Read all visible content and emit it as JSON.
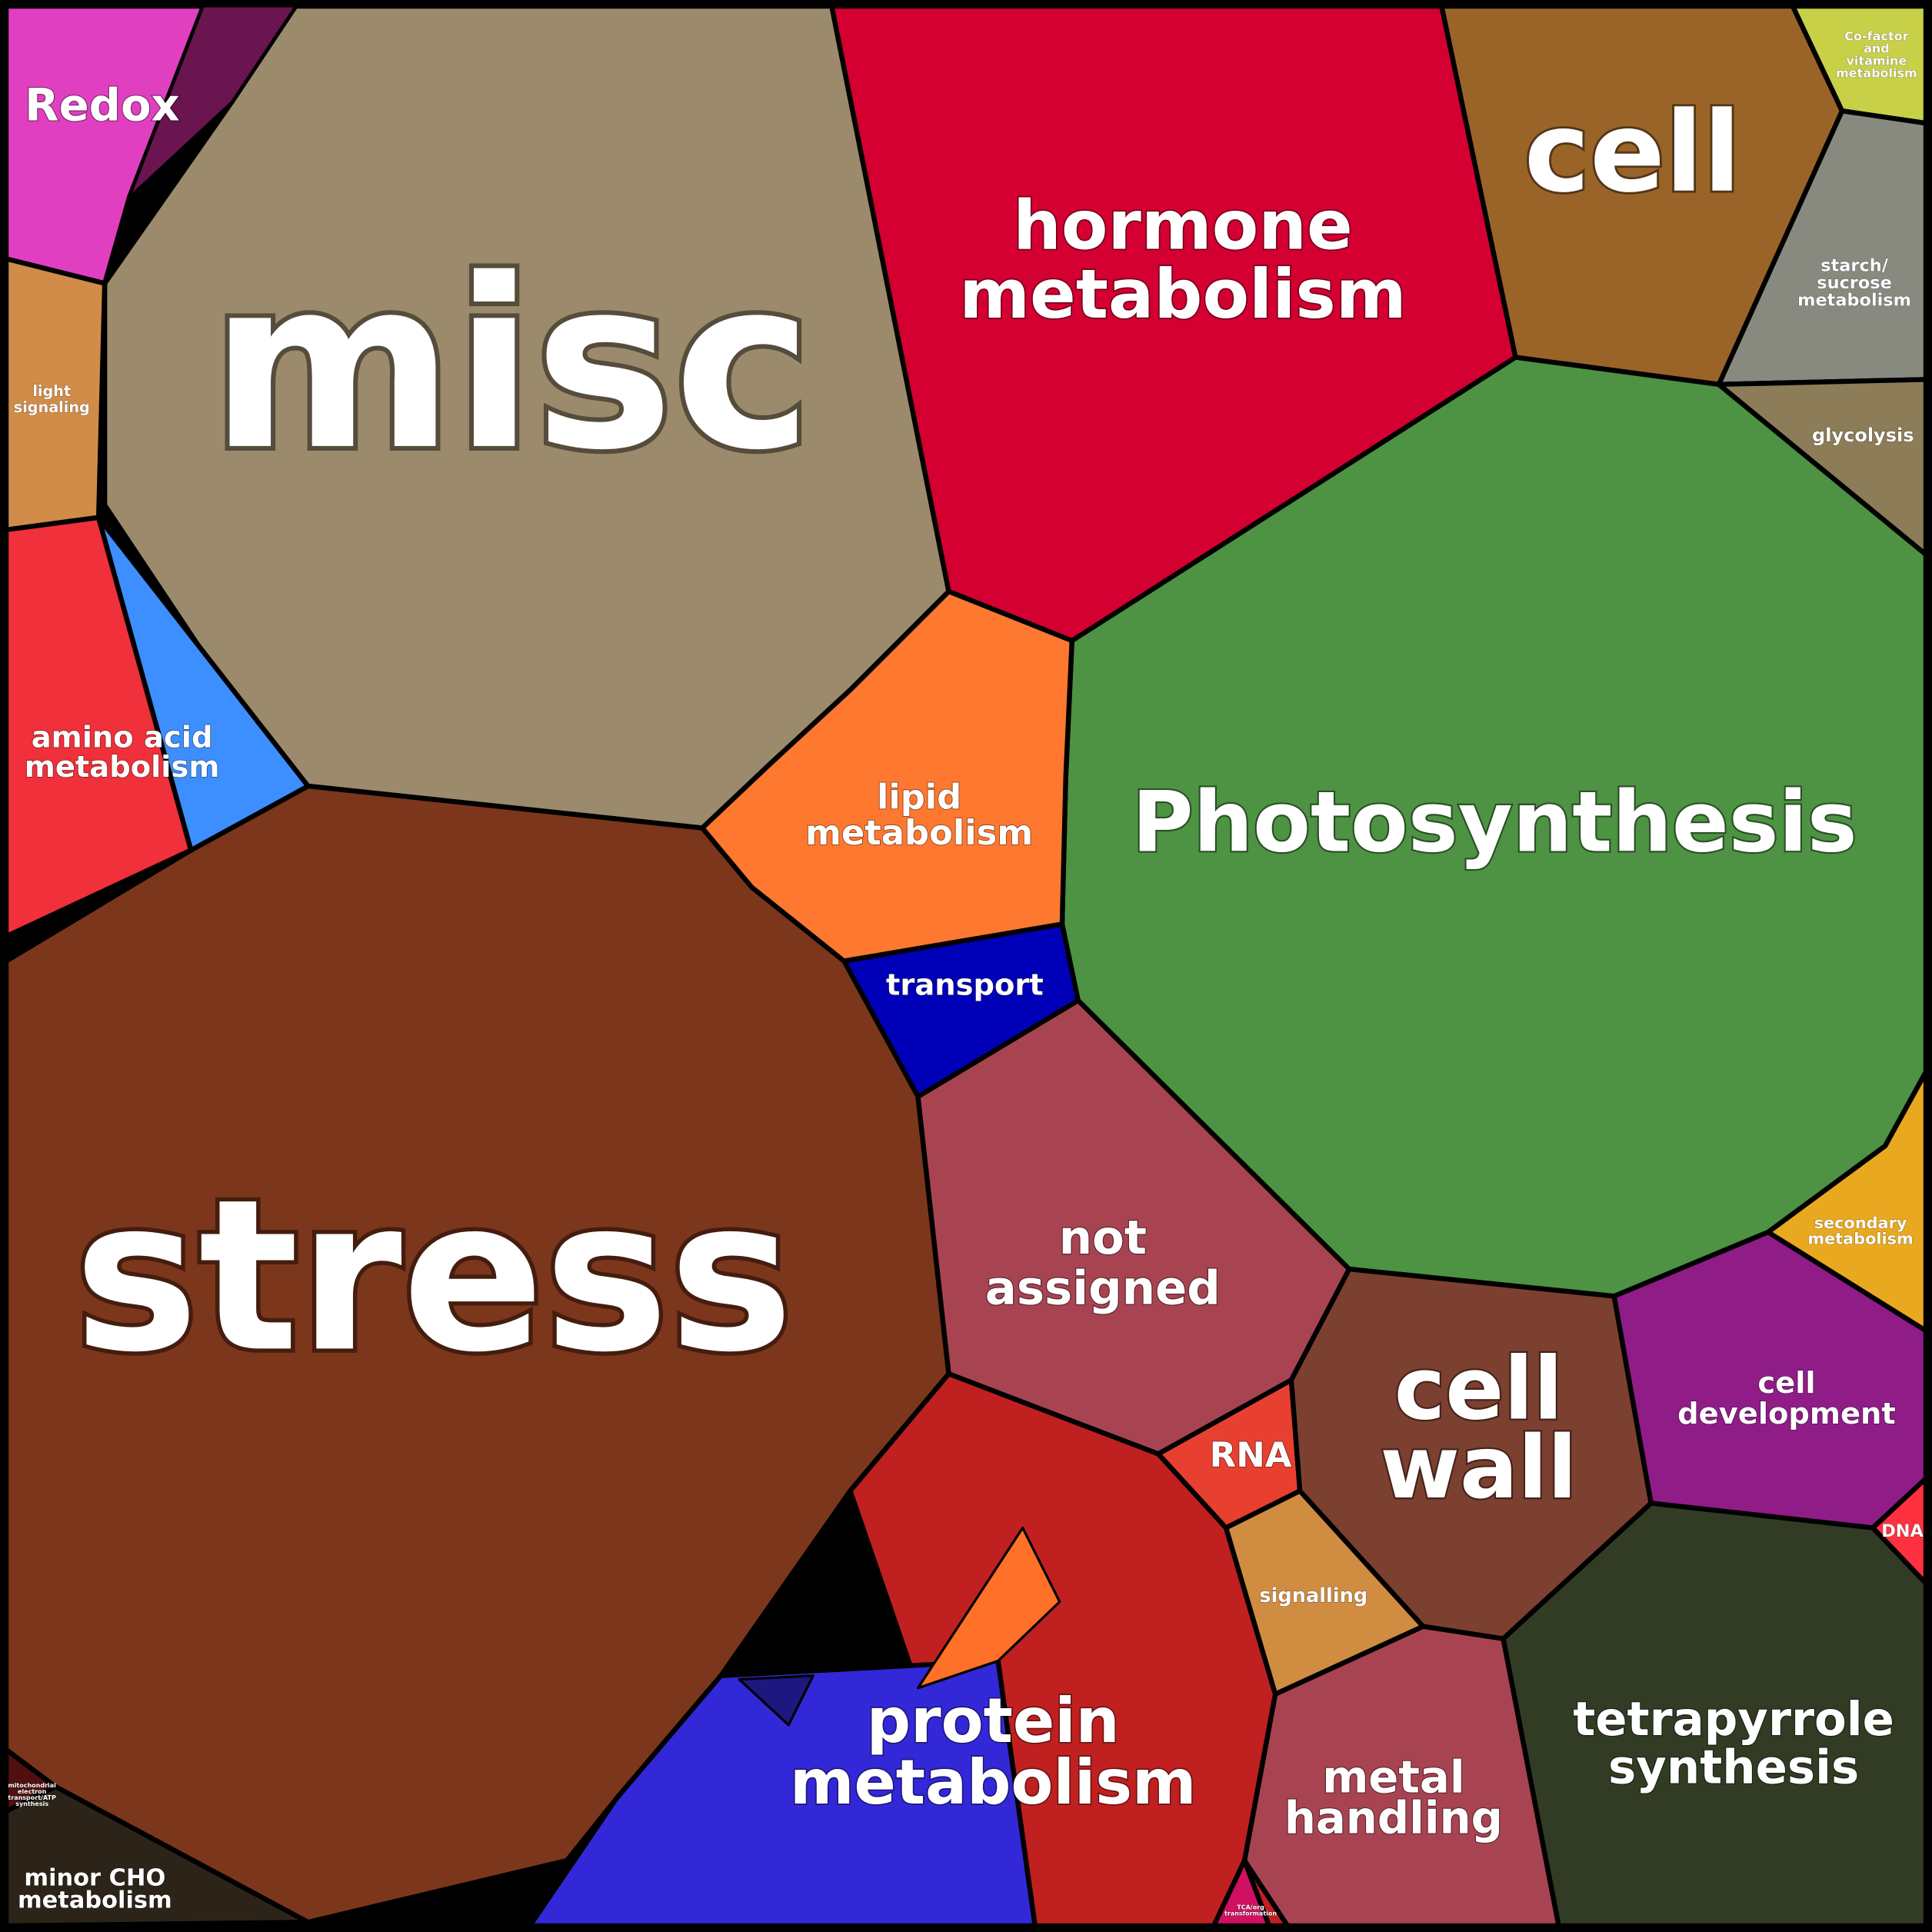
{
  "regions": [
    {
      "lines": [
        "misc"
      ],
      "color": "#9c8a6c"
    },
    {
      "lines": [
        "stress"
      ],
      "color": "#7c361c"
    },
    {
      "lines": [
        "hormone",
        "metabolism"
      ],
      "color": "#d40032"
    },
    {
      "lines": [
        "cell"
      ],
      "color": "#9a6428"
    },
    {
      "lines": [
        "Co-factor",
        "and",
        "vitamine",
        "metabolism"
      ],
      "color": "#c8d048"
    },
    {
      "lines": [
        "starch/",
        "sucrose",
        "metabolism"
      ],
      "color": "#888a80"
    },
    {
      "lines": [
        "glycolysis"
      ],
      "color": "#8c7c58"
    },
    {
      "lines": [
        "Photosynthesis"
      ],
      "color": "#4e9244"
    },
    {
      "lines": [
        "lipid",
        "metabolism"
      ],
      "color": "#ff7830"
    },
    {
      "lines": [
        "transport"
      ],
      "color": "#0000b8"
    },
    {
      "lines": [
        "not",
        "assigned"
      ],
      "color": "#a84452"
    },
    {
      "lines": [
        "RNA"
      ],
      "color": "#e84030"
    },
    {
      "lines": [
        "signalling"
      ],
      "color": "#d08c40"
    },
    {
      "lines": [
        "cell",
        "wall"
      ],
      "color": "#7c4030"
    },
    {
      "lines": [
        "cell",
        "development"
      ],
      "color": "#901c88"
    },
    {
      "lines": [
        "secondary",
        "metabolism"
      ],
      "color": "#e8a820"
    },
    {
      "lines": [
        "DNA"
      ],
      "color": "#ff3040"
    },
    {
      "lines": [
        "tetrapyrrole",
        "synthesis"
      ],
      "color": "#323c24"
    },
    {
      "lines": [
        "metal",
        "handling"
      ],
      "color": "#a84452"
    },
    {
      "lines": [
        "protein",
        "metabolism"
      ],
      "color": "#c02020"
    },
    {
      "lines": [
        "Redox"
      ],
      "color": "#e040c0"
    },
    {
      "lines": [
        "light",
        "signaling"
      ],
      "color": "#d08c48"
    },
    {
      "lines": [
        "amino acid",
        "metabolism"
      ],
      "color": "#f0303a"
    },
    {
      "lines": [
        "minor CHO",
        "metabolism"
      ],
      "color": "#2c2418"
    },
    {
      "lines": [
        "TCA/org",
        "transformation"
      ],
      "color": "#d01060"
    },
    {
      "lines": [
        "mitochondrial",
        "electron",
        "transport/ATP",
        "synthesis"
      ],
      "color": "#501010"
    }
  ]
}
